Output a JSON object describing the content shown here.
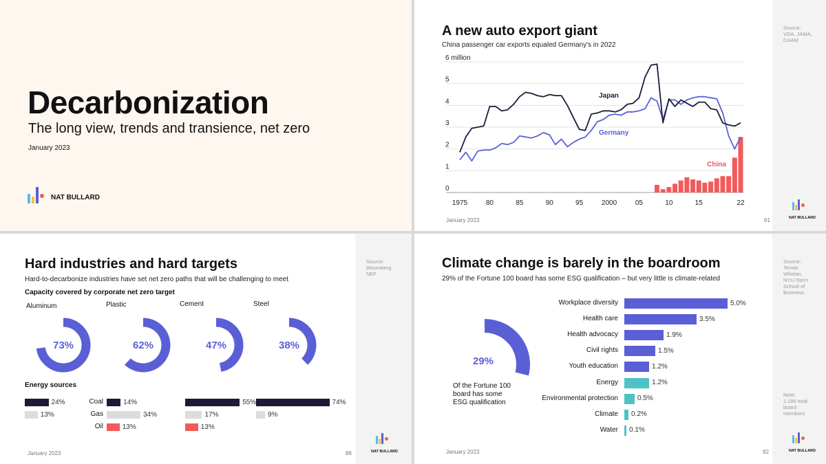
{
  "title_slide": {
    "title": "Decarbonization",
    "subtitle": "The long view, trends and transience, net zero",
    "date": "January 2023",
    "brand": "NAT BULLARD"
  },
  "auto_slide": {
    "title": "A new auto export giant",
    "subtitle": "China passenger car exports equaled Germany's in 2022",
    "source": "Source:\nVDA, JAMA,\nCAAM",
    "date": "January 2023",
    "page": "61",
    "brand": "NAT BULLARD",
    "colors": {
      "japan": "#1c1a3a",
      "germany": "#5a5fd6",
      "china": "#f25a5a"
    }
  },
  "industry_slide": {
    "title": "Hard industries and hard targets",
    "subtitle": "Hard-to-decarbonize industries have set net zero paths that will be challenging to meet",
    "capacity_heading": "Capacity covered by corporate net zero target",
    "energy_heading": "Energy sources",
    "source": "Source:\nBloomberg\nNEF",
    "date": "January 2023",
    "page": "86",
    "brand": "NAT BULLARD",
    "energy_labels": [
      "Coal",
      "Gas",
      "Oil"
    ]
  },
  "board_slide": {
    "title": "Climate change is barely in the boardroom",
    "subtitle": "29% of the Fortune 100 board has some ESG qualification – but very little is climate-related",
    "donut_value": "29%",
    "donut_caption_1": "Of the Fortune 100",
    "donut_caption_2": "board has some",
    "donut_caption_3": "ESG qualification",
    "source": "Source:\nTensie\nWhelan,\nNYU-Stern\nSchool of\nBusiness",
    "note": "Note:\n1,188 total\nboard\nmembers",
    "date": "January 2023",
    "page": "92",
    "brand": "NAT BULLARD"
  },
  "chart_data": [
    {
      "type": "line",
      "title": "A new auto export giant",
      "subtitle": "China passenger car exports equaled Germany's in 2022",
      "ylim": [
        0,
        6
      ],
      "yticks": [
        "0",
        "1",
        "2",
        "3",
        "4",
        "5",
        "6 million"
      ],
      "xticks": [
        {
          "year": 1975,
          "label": "1975"
        },
        {
          "year": 1980,
          "label": "80"
        },
        {
          "year": 1985,
          "label": "85"
        },
        {
          "year": 1990,
          "label": "90"
        },
        {
          "year": 1995,
          "label": "95"
        },
        {
          "year": 2000,
          "label": "2000"
        },
        {
          "year": 2005,
          "label": "05"
        },
        {
          "year": 2010,
          "label": "10"
        },
        {
          "year": 2015,
          "label": "15"
        },
        {
          "year": 2022,
          "label": "22"
        }
      ],
      "grid": true,
      "series": [
        {
          "name": "Japan",
          "kind": "line",
          "color": "#1c1a3a",
          "x": [
            1975,
            1976,
            1977,
            1978,
            1979,
            1980,
            1981,
            1982,
            1983,
            1984,
            1985,
            1986,
            1987,
            1988,
            1989,
            1990,
            1991,
            1992,
            1993,
            1994,
            1995,
            1996,
            1997,
            1998,
            1999,
            2000,
            2001,
            2002,
            2003,
            2004,
            2005,
            2006,
            2007,
            2008,
            2009,
            2010,
            2011,
            2012,
            2013,
            2014,
            2015,
            2016,
            2017,
            2018,
            2019,
            2020,
            2021,
            2022
          ],
          "values": [
            1.85,
            2.55,
            2.95,
            3.0,
            3.05,
            3.95,
            3.95,
            3.75,
            3.8,
            4.05,
            4.4,
            4.6,
            4.55,
            4.45,
            4.4,
            4.5,
            4.45,
            4.45,
            4.0,
            3.45,
            2.9,
            2.85,
            3.6,
            3.65,
            3.75,
            3.75,
            3.7,
            3.8,
            4.05,
            4.1,
            4.35,
            5.3,
            5.85,
            5.9,
            3.2,
            4.3,
            3.95,
            4.25,
            4.1,
            3.95,
            4.15,
            4.15,
            3.85,
            3.8,
            3.2,
            3.1,
            3.05,
            3.2
          ]
        },
        {
          "name": "Germany",
          "kind": "line",
          "color": "#5a5fd6",
          "x": [
            1975,
            1976,
            1977,
            1978,
            1979,
            1980,
            1981,
            1982,
            1983,
            1984,
            1985,
            1986,
            1987,
            1988,
            1989,
            1990,
            1991,
            1992,
            1993,
            1994,
            1995,
            1996,
            1997,
            1998,
            1999,
            2000,
            2001,
            2002,
            2003,
            2004,
            2005,
            2006,
            2007,
            2008,
            2009,
            2010,
            2011,
            2012,
            2013,
            2014,
            2015,
            2016,
            2017,
            2018,
            2019,
            2020,
            2021,
            2022
          ],
          "values": [
            1.5,
            1.85,
            1.45,
            1.9,
            1.95,
            1.95,
            2.05,
            2.25,
            2.2,
            2.3,
            2.6,
            2.55,
            2.5,
            2.6,
            2.75,
            2.65,
            2.2,
            2.45,
            2.1,
            2.3,
            2.45,
            2.55,
            2.85,
            3.25,
            3.35,
            3.55,
            3.6,
            3.55,
            3.7,
            3.7,
            3.75,
            3.85,
            4.35,
            4.2,
            3.35,
            4.25,
            4.25,
            4.05,
            4.25,
            4.35,
            4.4,
            4.4,
            4.35,
            4.3,
            3.65,
            2.6,
            2.0,
            2.55
          ]
        },
        {
          "name": "China",
          "kind": "bar",
          "color": "#f25a5a",
          "x": [
            2008,
            2009,
            2010,
            2011,
            2012,
            2013,
            2014,
            2015,
            2016,
            2017,
            2018,
            2019,
            2020,
            2021,
            2022
          ],
          "values": [
            0.35,
            0.15,
            0.25,
            0.4,
            0.55,
            0.7,
            0.6,
            0.55,
            0.45,
            0.5,
            0.65,
            0.75,
            0.75,
            1.6,
            2.55
          ]
        }
      ]
    },
    {
      "type": "pie",
      "title": "Capacity covered by corporate net zero target",
      "categories": [
        "Aluminum",
        "Plastic",
        "Cement",
        "Steel"
      ],
      "values": [
        73,
        62,
        47,
        38
      ],
      "unit": "%",
      "color": "#5a5fd6"
    },
    {
      "type": "bar",
      "title": "Energy sources",
      "categories": [
        "Coal",
        "Gas",
        "Oil"
      ],
      "series": [
        {
          "name": "Aluminum",
          "values": [
            24,
            13,
            null
          ]
        },
        {
          "name": "Plastic",
          "values": [
            14,
            34,
            13
          ]
        },
        {
          "name": "Cement",
          "values": [
            55,
            17,
            13
          ]
        },
        {
          "name": "Steel",
          "values": [
            74,
            9,
            null
          ]
        }
      ],
      "colors": {
        "Coal": "#1c1a3a",
        "Gas": "#dcdcdc",
        "Oil": "#f25a5a"
      },
      "unit": "%"
    },
    {
      "type": "bar",
      "title": "Climate change is barely in the boardroom",
      "orientation": "horizontal",
      "categories": [
        "Workplace diversity",
        "Health care",
        "Health advocacy",
        "Civil rights",
        "Youth education",
        "Energy",
        "Environmental protection",
        "Climate",
        "Water"
      ],
      "values": [
        5.0,
        3.5,
        1.9,
        1.5,
        1.2,
        1.2,
        0.5,
        0.2,
        0.1
      ],
      "labels": [
        "5.0%",
        "3.5%",
        "1.9%",
        "1.5%",
        "1.2%",
        "1.2%",
        "0.5%",
        "0.2%",
        "0.1%"
      ],
      "colors": [
        "#5a5fd6",
        "#5a5fd6",
        "#5a5fd6",
        "#5a5fd6",
        "#5a5fd6",
        "#4ec2c6",
        "#4ec2c6",
        "#4ec2c6",
        "#4ec2c6"
      ],
      "xlim": [
        0,
        5.0
      ]
    },
    {
      "type": "pie",
      "title": "Of the Fortune 100 board has some ESG qualification",
      "values": [
        29
      ],
      "unit": "%",
      "color": "#5a5fd6"
    }
  ]
}
